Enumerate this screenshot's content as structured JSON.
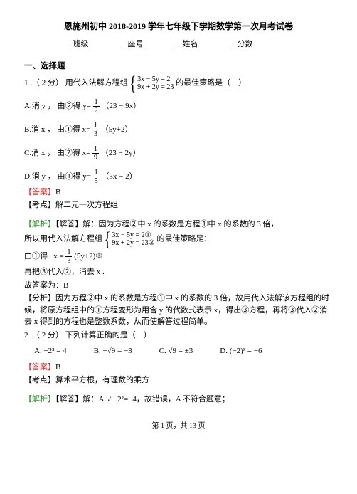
{
  "header": {
    "title": "恩施州初中 2018-2019 学年七年级下学期数学第一次月考试卷",
    "labels": {
      "class": "班级",
      "seat": "座号",
      "name": "姓名",
      "score": "分数"
    }
  },
  "section1": "一、选择题",
  "q1": {
    "stem_a": "1 .（ 2 分） 用代入法解方程组",
    "sys_top": "3x − 5y = 2",
    "sys_bot": "9x + 2y = 23",
    "stem_b": "的最佳策略是（　）",
    "A": {
      "lead": "A.消 y ， 由②得 y=",
      "num": "1",
      "den": "2",
      "rest": "（23 − 9x）"
    },
    "B": {
      "lead": "B.消 x ， 由①得 x=",
      "num": "1",
      "den": "3",
      "rest": "（5y+2）"
    },
    "C": {
      "lead": "C.消 x ， 由②得 x=",
      "num": "1",
      "den": "9",
      "rest": "（23 − 2y）"
    },
    "D": {
      "lead": "D.消 y ， 由①得 y=",
      "num": "1",
      "den": "5",
      "rest": "（3x − 2）"
    },
    "answer_lbl": "【答案】",
    "answer_val": "B",
    "kd_lbl": "【考点】",
    "kd_txt": "解二元一次方程组",
    "jx_lbl": "【解析】",
    "jx_head": "【解答】解：因为方程②中 x 的系数是方程①中 x 的系数的 3 倍，",
    "jx_l2a": "所以用代入法解方程组",
    "jx_sys_top": "3x − 5y = 2①",
    "jx_sys_bot": "9x + 2y = 23②",
    "jx_l2b": "的最佳策略是：",
    "jx_l3a": "由①得",
    "jx_frac_lhs": "x =",
    "jx_num": "1",
    "jx_den": "3",
    "jx_rest": "(5y+2)③",
    "jx_l4": "再把③代入②，消去 x .",
    "jx_l5": "故答案为：B",
    "fx_lbl": "【分析】",
    "fx_txt": "因为方程②中 x 的系数是方程①中 x 的系数的 3 倍，故用代入法解该方程组的时候，将原方程组中的①方程变形为用含 y 的代数式表示 x，得出③方程，再将③代入②消去 x 得到的方程也是整数系数，从而使解答过程简单。"
  },
  "q2": {
    "stem": "2 .（ 2 分） 下列计算正确的是（　）",
    "A": "A. −2² = 4",
    "B": "B. −√9 = −3",
    "C": "C. √9 = ±3",
    "D": "D. (−2)³ = −6",
    "answer_lbl": "【答案】",
    "answer_val": "B",
    "kd_lbl": "【考点】",
    "kd_txt": "算术平方根，有理数的乘方",
    "jx_lbl": "【解析】",
    "jx_txt": "【解答】解：A.∵ −2²=−4，故错误，A 不符合题意；"
  },
  "footer": "第 1 页，共 13 页"
}
